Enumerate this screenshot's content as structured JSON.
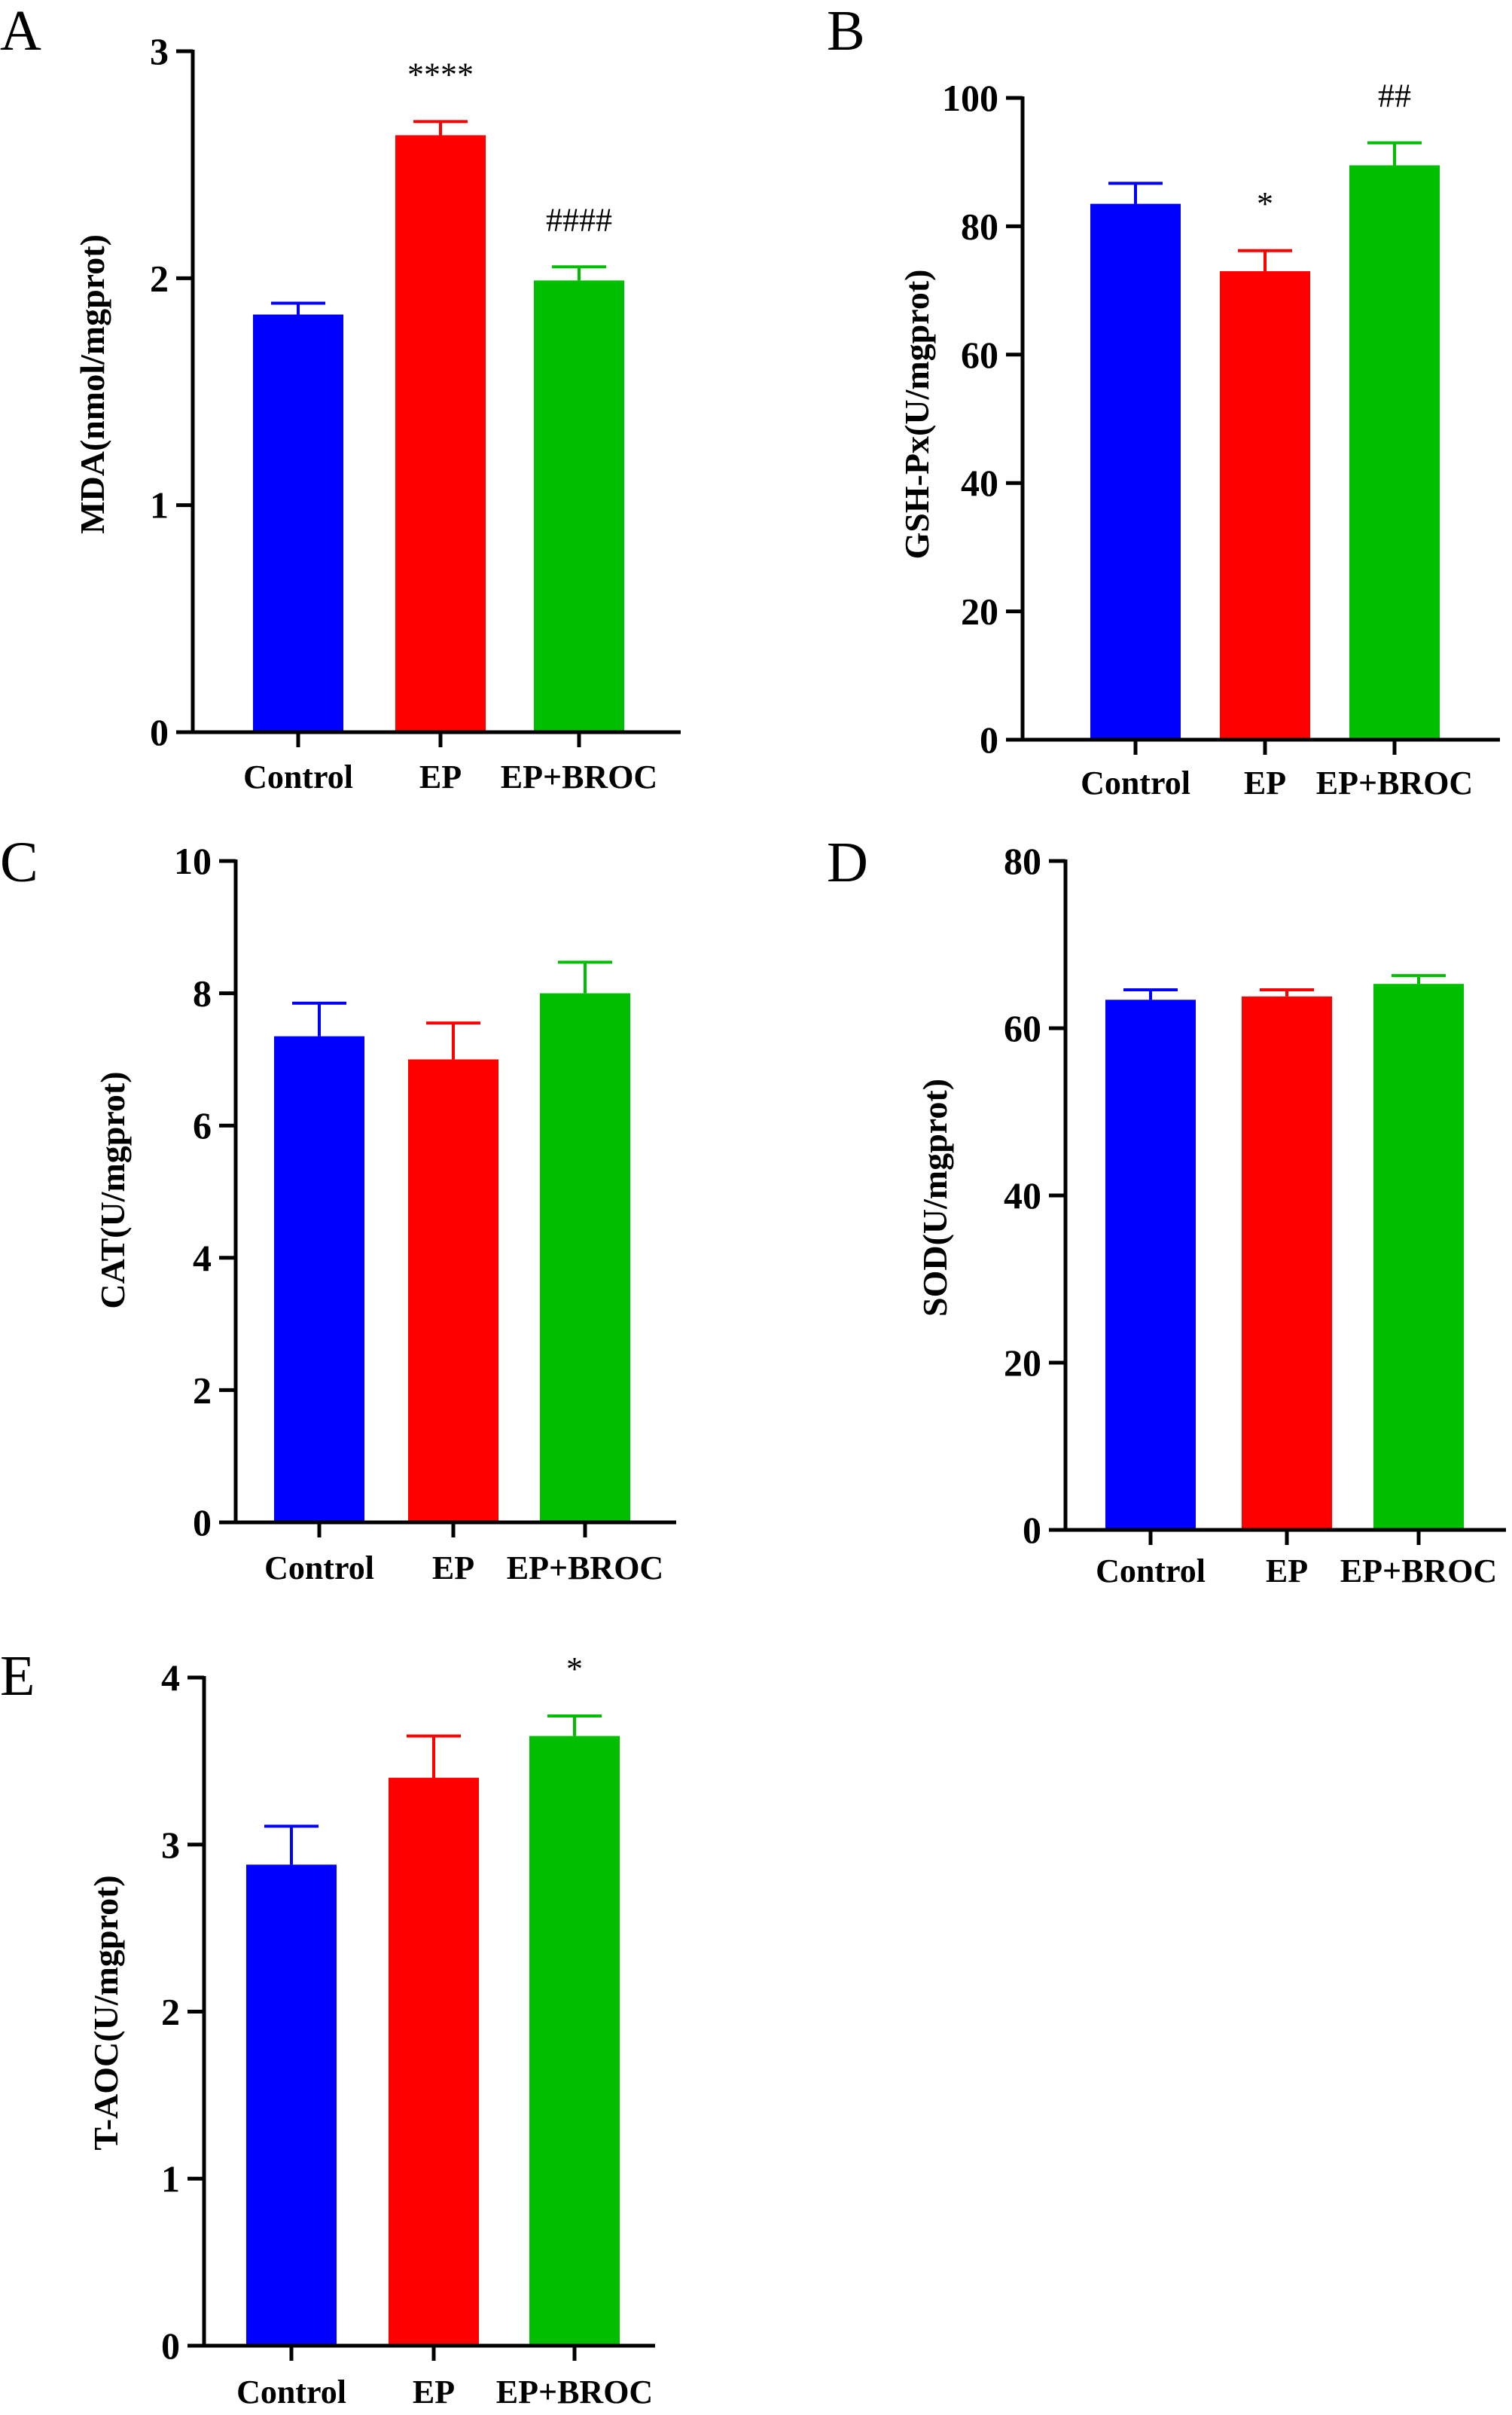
{
  "figure": {
    "panels": [
      "A",
      "B",
      "C",
      "D",
      "E"
    ]
  },
  "chart_data": [
    {
      "panel": "A",
      "type": "bar",
      "categories": [
        "Control",
        "EP",
        "EP+BROC"
      ],
      "values": [
        1.84,
        2.63,
        1.99
      ],
      "errors": [
        0.05,
        0.06,
        0.06
      ],
      "colors": [
        "#0000ff",
        "#ff0000",
        "#00bf00"
      ],
      "significance": [
        "",
        "****",
        "####"
      ],
      "ylabel": "MDA(nmol/mgprot)",
      "ylim": [
        0,
        3
      ],
      "yticks": [
        "0",
        "1",
        "2",
        "3"
      ],
      "grid": false
    },
    {
      "panel": "B",
      "type": "bar",
      "categories": [
        "Control",
        "EP",
        "EP+BROC"
      ],
      "values": [
        83.5,
        73,
        89.5
      ],
      "errors": [
        3.2,
        3.2,
        3.5
      ],
      "colors": [
        "#0000ff",
        "#ff0000",
        "#00bf00"
      ],
      "significance": [
        "",
        "*",
        "##"
      ],
      "ylabel": "GSH-Px(U/mgprot)",
      "ylim": [
        0,
        100
      ],
      "yticks": [
        "0",
        "20",
        "40",
        "60",
        "80",
        "100"
      ],
      "grid": false
    },
    {
      "panel": "C",
      "type": "bar",
      "categories": [
        "Control",
        "EP",
        "EP+BROC"
      ],
      "values": [
        7.35,
        7.0,
        8.0
      ],
      "errors": [
        0.5,
        0.55,
        0.47
      ],
      "colors": [
        "#0000ff",
        "#ff0000",
        "#00bf00"
      ],
      "significance": [
        "",
        "",
        ""
      ],
      "ylabel": "CAT(U/mgprot)",
      "ylim": [
        0,
        10
      ],
      "yticks": [
        "0",
        "2",
        "4",
        "6",
        "8",
        "10"
      ],
      "grid": false
    },
    {
      "panel": "D",
      "type": "bar",
      "categories": [
        "Control",
        "EP",
        "EP+BROC"
      ],
      "values": [
        63.4,
        63.8,
        65.3
      ],
      "errors": [
        1.2,
        0.8,
        1.0
      ],
      "colors": [
        "#0000ff",
        "#ff0000",
        "#00bf00"
      ],
      "significance": [
        "",
        "",
        ""
      ],
      "ylabel": "SOD(U/mgprot)",
      "ylim": [
        0,
        80
      ],
      "yticks": [
        "0",
        "20",
        "40",
        "60",
        "80"
      ],
      "grid": false
    },
    {
      "panel": "E",
      "type": "bar",
      "categories": [
        "Control",
        "EP",
        "EP+BROC"
      ],
      "values": [
        2.88,
        3.4,
        3.65
      ],
      "errors": [
        0.23,
        0.25,
        0.12
      ],
      "colors": [
        "#0000ff",
        "#ff0000",
        "#00bf00"
      ],
      "significance": [
        "",
        "",
        "*"
      ],
      "ylabel": "T-AOC(U/mgprot)",
      "ylim": [
        0,
        4
      ],
      "yticks": [
        "0",
        "1",
        "2",
        "3",
        "4"
      ],
      "grid": false
    }
  ]
}
